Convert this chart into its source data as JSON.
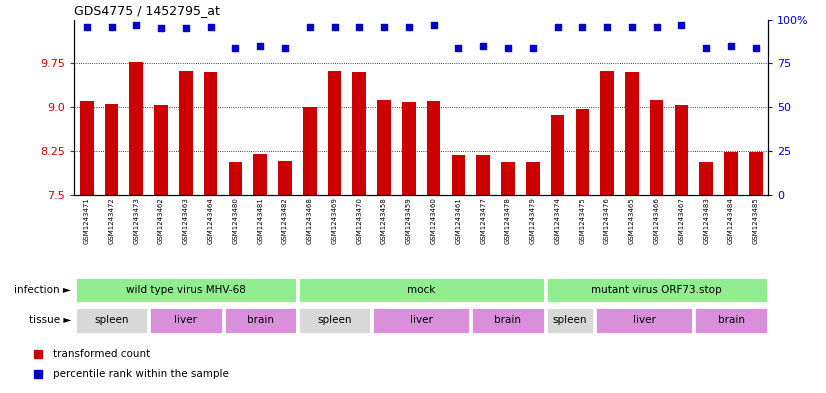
{
  "title": "GDS4775 / 1452795_at",
  "samples": [
    "GSM1243471",
    "GSM1243472",
    "GSM1243473",
    "GSM1243462",
    "GSM1243463",
    "GSM1243464",
    "GSM1243480",
    "GSM1243481",
    "GSM1243482",
    "GSM1243468",
    "GSM1243469",
    "GSM1243470",
    "GSM1243458",
    "GSM1243459",
    "GSM1243460",
    "GSM1243461",
    "GSM1243477",
    "GSM1243478",
    "GSM1243479",
    "GSM1243474",
    "GSM1243475",
    "GSM1243476",
    "GSM1243465",
    "GSM1243466",
    "GSM1243467",
    "GSM1243483",
    "GSM1243484",
    "GSM1243485"
  ],
  "bar_values": [
    9.1,
    9.05,
    9.78,
    9.03,
    9.62,
    9.61,
    8.05,
    8.19,
    8.07,
    9.0,
    9.62,
    9.61,
    9.13,
    9.08,
    9.1,
    8.17,
    8.17,
    8.05,
    8.05,
    8.86,
    8.96,
    9.62,
    9.61,
    9.12,
    9.04,
    8.05,
    8.23,
    8.23
  ],
  "percentile_values": [
    96,
    96,
    97,
    95,
    95,
    96,
    84,
    85,
    84,
    96,
    96,
    96,
    96,
    96,
    97,
    84,
    85,
    84,
    84,
    96,
    96,
    96,
    96,
    96,
    97,
    84,
    85,
    84
  ],
  "ymin": 7.5,
  "ymax": 10.5,
  "yticks_left": [
    7.5,
    8.25,
    9.0,
    9.75
  ],
  "yticks_right": [
    0,
    25,
    50,
    75,
    100
  ],
  "bar_color": "#cc0000",
  "dot_color": "#0000cc",
  "infection_groups": [
    {
      "label": "wild type virus MHV-68",
      "start": 0,
      "end": 9,
      "color": "#90ee90"
    },
    {
      "label": "mock",
      "start": 9,
      "end": 19,
      "color": "#90ee90"
    },
    {
      "label": "mutant virus ORF73.stop",
      "start": 19,
      "end": 28,
      "color": "#90ee90"
    }
  ],
  "tissue_groups": [
    {
      "label": "spleen",
      "start": 0,
      "end": 3,
      "color": "#d8d8d8"
    },
    {
      "label": "liver",
      "start": 3,
      "end": 6,
      "color": "#da8fda"
    },
    {
      "label": "brain",
      "start": 6,
      "end": 9,
      "color": "#da8fda"
    },
    {
      "label": "spleen",
      "start": 9,
      "end": 12,
      "color": "#d8d8d8"
    },
    {
      "label": "liver",
      "start": 12,
      "end": 16,
      "color": "#da8fda"
    },
    {
      "label": "brain",
      "start": 16,
      "end": 19,
      "color": "#da8fda"
    },
    {
      "label": "spleen",
      "start": 19,
      "end": 21,
      "color": "#d8d8d8"
    },
    {
      "label": "liver",
      "start": 21,
      "end": 25,
      "color": "#da8fda"
    },
    {
      "label": "brain",
      "start": 25,
      "end": 28,
      "color": "#da8fda"
    }
  ],
  "legend_bar_label": "transformed count",
  "legend_dot_label": "percentile rank within the sample",
  "infection_label": "infection",
  "tissue_label": "tissue"
}
